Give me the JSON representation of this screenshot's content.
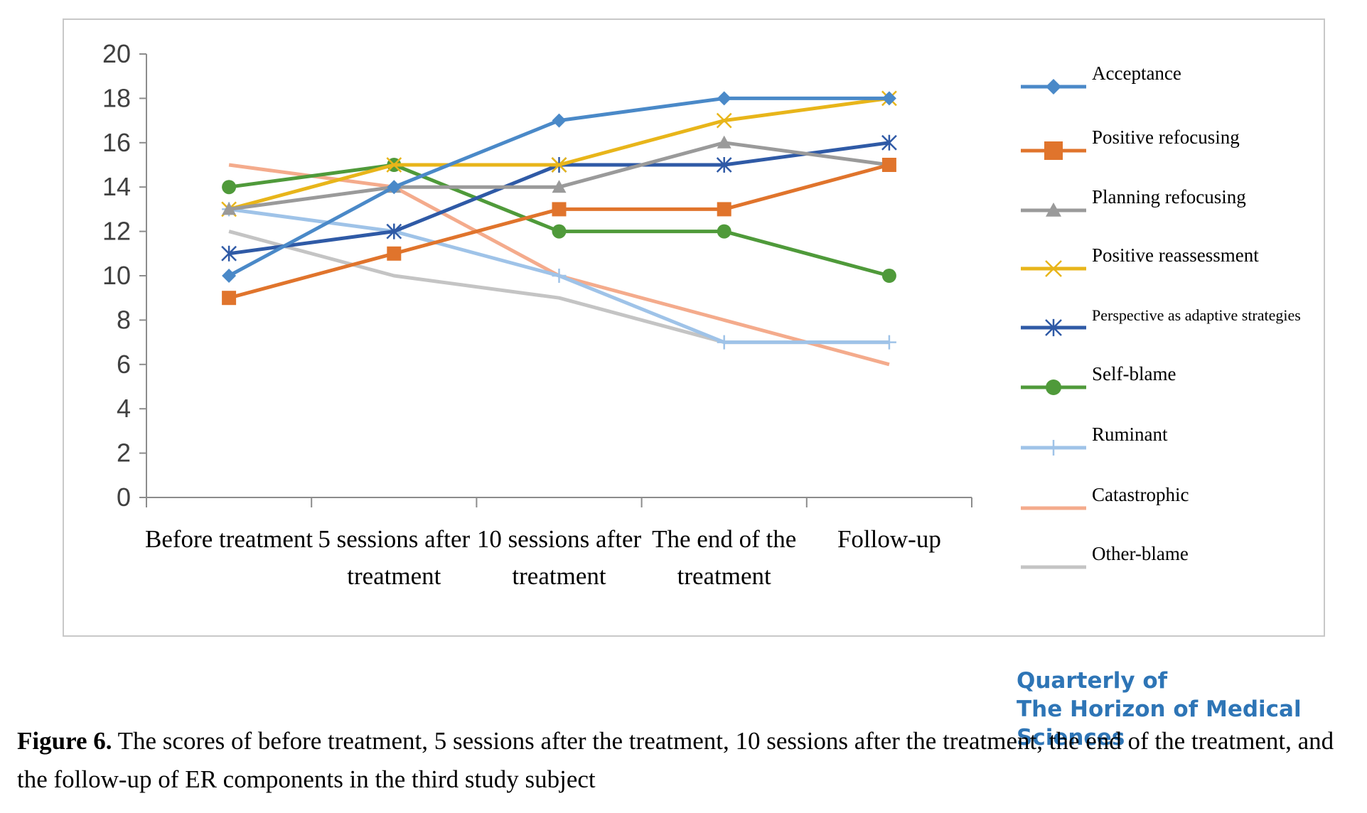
{
  "chart_data": {
    "type": "line",
    "categories": [
      [
        "Before treatment"
      ],
      [
        "5 sessions after",
        "treatment"
      ],
      [
        "10 sessions after",
        "treatment"
      ],
      [
        "The end of the",
        "treatment"
      ],
      [
        "Follow-up"
      ]
    ],
    "ylim": [
      0,
      20
    ],
    "yticks": [
      "0",
      "2",
      "4",
      "6",
      "8",
      "10",
      "12",
      "14",
      "16",
      "18",
      "20"
    ],
    "grid": false,
    "legend_position": "right",
    "series": [
      {
        "name": "Acceptance",
        "color": "#4a89c8",
        "marker": "diamond",
        "values": [
          10,
          14,
          17,
          18,
          18
        ]
      },
      {
        "name": "Positive refocusing",
        "color": "#e0742c",
        "marker": "square",
        "values": [
          9,
          11,
          13,
          13,
          15
        ]
      },
      {
        "name": "Planning refocusing",
        "color": "#9a9a9a",
        "marker": "triangle",
        "values": [
          13,
          14,
          14,
          16,
          15
        ]
      },
      {
        "name": "Positive reassessment",
        "color": "#e8b51a",
        "marker": "x",
        "values": [
          13,
          15,
          15,
          17,
          18
        ]
      },
      {
        "name": "Perspective as adaptive strategies",
        "color": "#2f5aa6",
        "marker": "star",
        "values": [
          11,
          12,
          15,
          15,
          16
        ]
      },
      {
        "name": "Self-blame",
        "color": "#4f9a3a",
        "marker": "circle",
        "values": [
          14,
          15,
          12,
          12,
          10
        ]
      },
      {
        "name": "Ruminant",
        "color": "#9fc3e8",
        "marker": "plus",
        "values": [
          13,
          12,
          10,
          7,
          7
        ]
      },
      {
        "name": "Catastrophic",
        "color": "#f4ab8c",
        "marker": "none",
        "values": [
          15,
          14,
          10,
          8,
          6
        ]
      },
      {
        "name": "Other-blame",
        "color": "#c4c4c4",
        "marker": "none",
        "values": [
          12,
          10,
          9,
          7,
          7
        ]
      }
    ]
  },
  "journal": {
    "line1": "Quarterly of",
    "line2": "The Horizon of Medical Sciences"
  },
  "caption": {
    "label": "Figure 6.",
    "text": " The scores of before treatment, 5 sessions after the treatment, 10 sessions after the treatment, the end of the treatment, and the follow-up of ER components in the third study subject"
  }
}
